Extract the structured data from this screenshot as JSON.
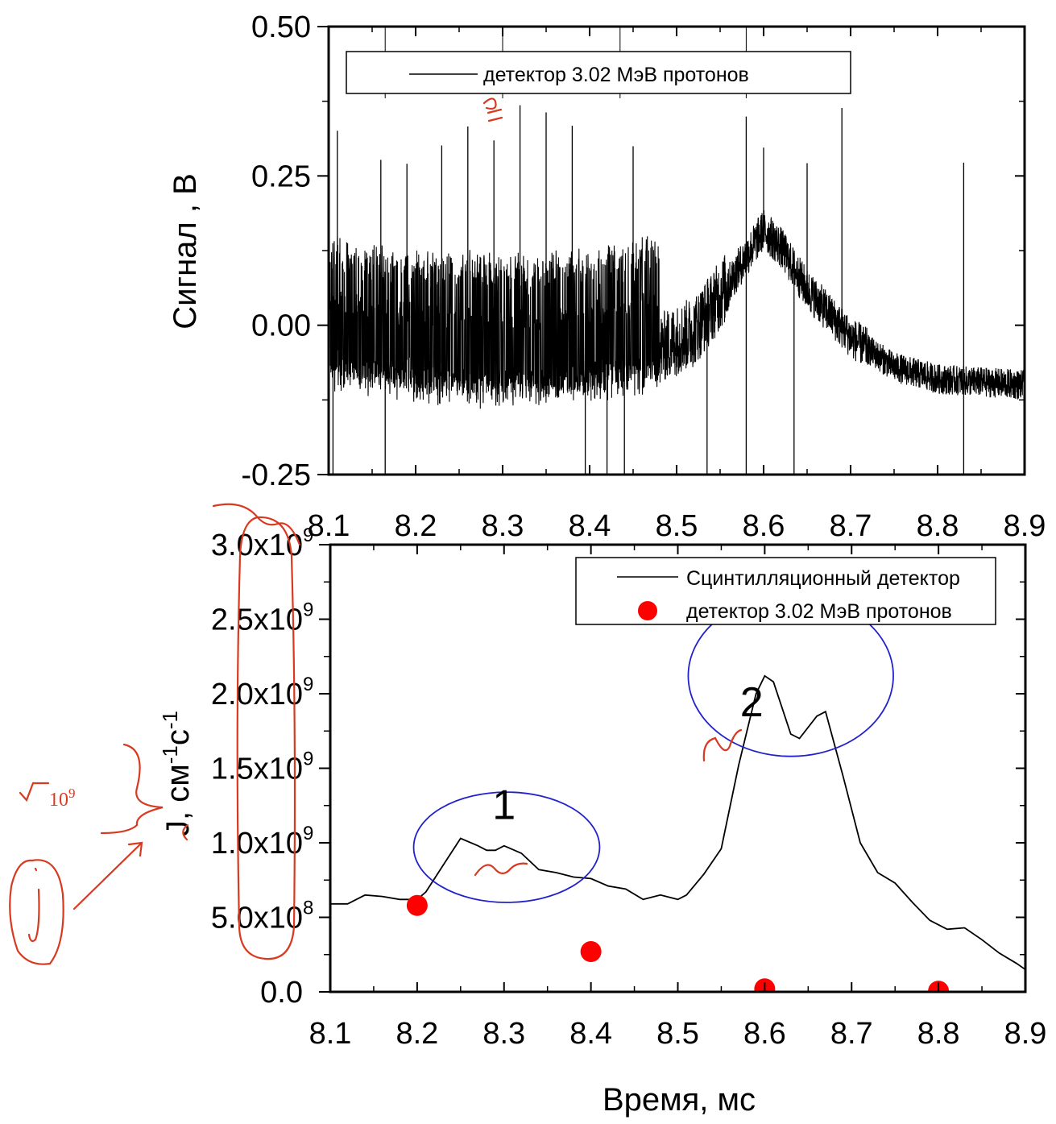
{
  "colors": {
    "axis": "#000000",
    "trace": "#000000",
    "points": "#ff0000",
    "circles": "#2222cc",
    "handwriting": "#d83a20"
  },
  "chart_data": [
    {
      "type": "line",
      "title": "",
      "xlabel": "",
      "ylabel": "Сигнал , В",
      "xlim": [
        8.1,
        8.9
      ],
      "ylim": [
        -0.25,
        0.5
      ],
      "xticks": [
        "8.1",
        "8.2",
        "8.3",
        "8.4",
        "8.5",
        "8.6",
        "8.7",
        "8.8",
        "8.9"
      ],
      "yticks": [
        "-0.25",
        "0.00",
        "0.25",
        "0.50"
      ],
      "legend_placement": "top-center",
      "series": [
        {
          "name": "детектор 3.02 МэВ протонов",
          "style": "noisy signal",
          "baseline": [
            [
              8.1,
              -0.04
            ],
            [
              8.2,
              -0.06
            ],
            [
              8.3,
              -0.07
            ],
            [
              8.4,
              -0.06
            ],
            [
              8.48,
              -0.04
            ],
            [
              8.52,
              -0.01
            ],
            [
              8.56,
              0.07
            ],
            [
              8.6,
              0.16
            ],
            [
              8.62,
              0.13
            ],
            [
              8.65,
              0.06
            ],
            [
              8.7,
              -0.02
            ],
            [
              8.75,
              -0.07
            ],
            [
              8.8,
              -0.09
            ],
            [
              8.9,
              -0.1
            ]
          ],
          "spike_times": [
            8.165,
            8.3,
            8.435,
            8.58
          ],
          "up_spikes": [
            8.11,
            8.16,
            8.19,
            8.23,
            8.26,
            8.29,
            8.32,
            8.35,
            8.38,
            8.45,
            8.58,
            8.6,
            8.65,
            8.69,
            8.83
          ],
          "down_spikes": [
            8.105,
            8.165,
            8.395,
            8.42,
            8.44,
            8.535,
            8.58,
            8.635,
            8.83
          ]
        }
      ]
    },
    {
      "type": "line",
      "title": "",
      "xlabel": "Время, мс",
      "ylabel": "J, см-1с-1",
      "xlim": [
        8.1,
        8.9
      ],
      "ylim": [
        0,
        3000000000.0
      ],
      "xticks": [
        "8.1",
        "8.2",
        "8.3",
        "8.4",
        "8.5",
        "8.6",
        "8.7",
        "8.8",
        "8.9"
      ],
      "yticks": [
        {
          "value": 0.0,
          "label": "0.0",
          "exp": ""
        },
        {
          "value": 500000000.0,
          "label": "5.0x10",
          "exp": "8"
        },
        {
          "value": 1000000000.0,
          "label": "1.0x10",
          "exp": "9"
        },
        {
          "value": 1500000000.0,
          "label": "1.5x10",
          "exp": "9"
        },
        {
          "value": 2000000000.0,
          "label": "2.0x10",
          "exp": "9"
        },
        {
          "value": 2500000000.0,
          "label": "2.5x10",
          "exp": "9"
        },
        {
          "value": 3000000000.0,
          "label": "3.0x10",
          "exp": "9"
        }
      ],
      "legend_placement": "top-right",
      "series": [
        {
          "name": "Сцинтилляционный детектор",
          "style": "line",
          "x": [
            8.1,
            8.12,
            8.14,
            8.16,
            8.18,
            8.2,
            8.21,
            8.23,
            8.25,
            8.27,
            8.28,
            8.29,
            8.3,
            8.32,
            8.34,
            8.36,
            8.38,
            8.4,
            8.42,
            8.44,
            8.46,
            8.48,
            8.5,
            8.51,
            8.53,
            8.55,
            8.57,
            8.59,
            8.6,
            8.61,
            8.63,
            8.64,
            8.66,
            8.67,
            8.69,
            8.71,
            8.73,
            8.75,
            8.77,
            8.79,
            8.81,
            8.83,
            8.85,
            8.87,
            8.89,
            8.9
          ],
          "y": [
            590000000.0,
            590000000.0,
            650000000.0,
            640000000.0,
            620000000.0,
            620000000.0,
            670000000.0,
            850000000.0,
            1030000000.0,
            980000000.0,
            950000000.0,
            950000000.0,
            980000000.0,
            930000000.0,
            820000000.0,
            800000000.0,
            770000000.0,
            760000000.0,
            710000000.0,
            690000000.0,
            620000000.0,
            650000000.0,
            620000000.0,
            650000000.0,
            790000000.0,
            960000000.0,
            1520000000.0,
            2000000000.0,
            2120000000.0,
            2080000000.0,
            1730000000.0,
            1700000000.0,
            1850000000.0,
            1880000000.0,
            1450000000.0,
            1000000000.0,
            800000000.0,
            730000000.0,
            600000000.0,
            480000000.0,
            420000000.0,
            430000000.0,
            350000000.0,
            260000000.0,
            190000000.0,
            150000000.0
          ]
        },
        {
          "name": "детектор 3.02 МэВ протонов",
          "style": "points",
          "x": [
            8.2,
            8.4,
            8.6,
            8.8
          ],
          "y": [
            580000000.0,
            270000000.0,
            20000000.0,
            5000000.0
          ]
        }
      ],
      "annotations": [
        {
          "text": "1",
          "x": 8.3,
          "y": 1160000000.0,
          "ellipse": {
            "cx": 8.303,
            "cy": 970000000.0,
            "rx": 0.107,
            "ry": 370000000.0
          }
        },
        {
          "text": "2",
          "x": 8.585,
          "y": 1850000000.0,
          "ellipse": {
            "cx": 8.63,
            "cy": 2120000000.0,
            "rx": 0.118,
            "ry": 540000000.0
          }
        }
      ]
    }
  ],
  "handwriting": {
    "note_ten_power": "10",
    "note_ten_exp": "9"
  }
}
